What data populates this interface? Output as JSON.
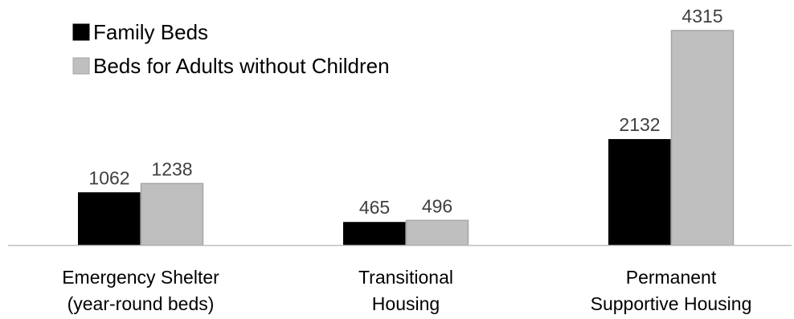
{
  "chart_data": {
    "type": "bar",
    "title": "",
    "xlabel": "",
    "ylabel": "",
    "categories": [
      [
        "Emergency Shelter",
        "(year-round beds)"
      ],
      [
        "Transitional",
        "Housing"
      ],
      [
        "Permanent",
        "Supportive Housing"
      ]
    ],
    "series": [
      {
        "name": "Family Beds",
        "values": [
          1062,
          465,
          2132
        ],
        "color": "#000000",
        "stroke": "#000000"
      },
      {
        "name": "Beds for Adults without Children",
        "values": [
          1238,
          496,
          4315
        ],
        "color": "#BFBFBF",
        "stroke": "#A6A6A6"
      }
    ],
    "ylim": [
      0,
      4315
    ],
    "grid": false,
    "legend_position": "top-left",
    "axis_color": "#BFBFBF"
  }
}
